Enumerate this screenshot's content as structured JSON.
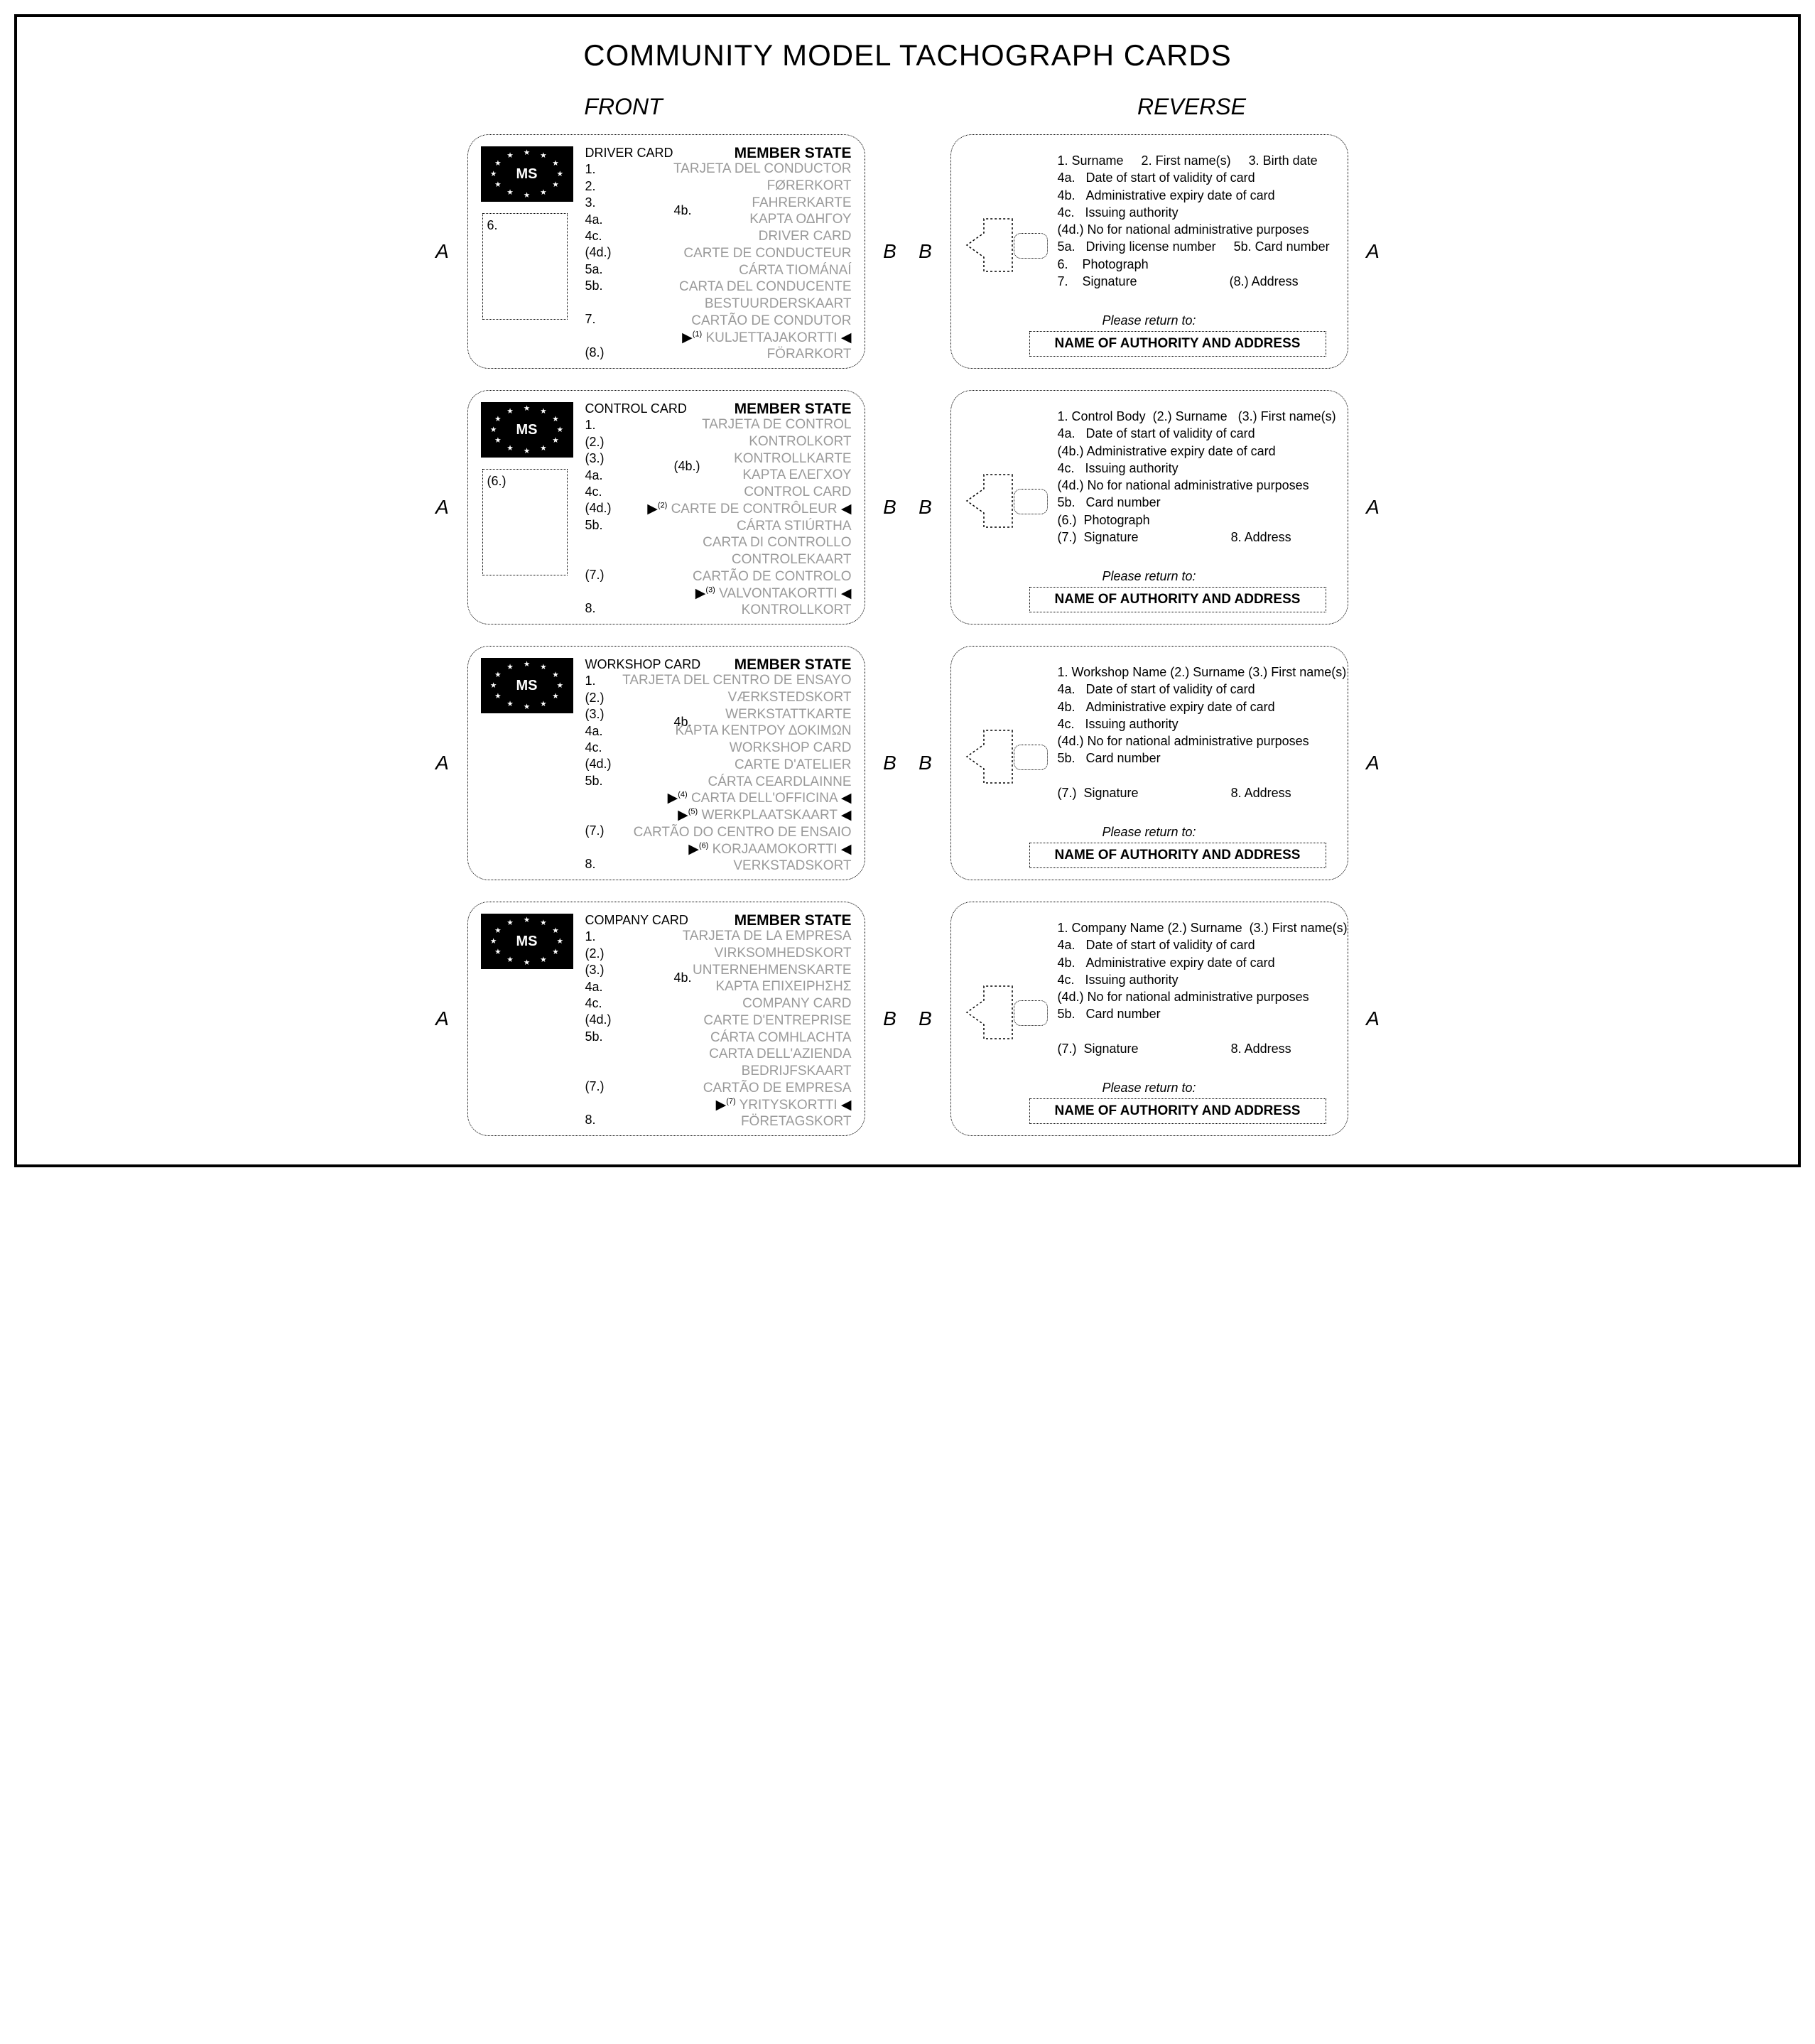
{
  "title": "COMMUNITY MODEL TACHOGRAPH CARDS",
  "frontLabel": "FRONT",
  "reverseLabel": "REVERSE",
  "sideA": "A",
  "sideB": "B",
  "flagText": "MS",
  "memberState": "MEMBER STATE",
  "pleaseReturn": "Please return to:",
  "returnBox": "NAME OF AUTHORITY AND ADDRESS",
  "colors": {
    "bgText": "#9a9a9a",
    "border": "#000000",
    "flagBg": "#000000"
  },
  "cards": [
    {
      "title": "DRIVER CARD",
      "frontFields": [
        "1.",
        "2.",
        "3.",
        "4a.",
        "4c.",
        "(4d.)",
        "5a.",
        "5b.",
        "",
        "7.",
        "",
        "(8.)"
      ],
      "mid4b": "4b.",
      "mid4bTop": 96,
      "photoLabel": "6.",
      "bgNames": [
        "TARJETA DEL CONDUCTOR",
        "FØRERKORT",
        "FAHRERKARTE",
        "ΚΑΡΤΑ ΟΔΗΓΟΥ",
        "DRIVER CARD",
        "CARTE DE CONDUCTEUR",
        "CÁRTA TIOMÁNAÍ",
        "CARTA DEL CONDUCENTE",
        "BESTUURDERSKAART",
        "CARTÃO DE CONDUTOR",
        "KULJETTAJAKORTTI",
        "FÖRARKORT"
      ],
      "arrowLines": [
        {
          "idx": 10,
          "note": "(1)"
        }
      ],
      "reverse": [
        "1. Surname     2. First name(s)     3. Birth date",
        "4a.   Date of start of validity of card",
        "4b.   Administrative expiry date of card",
        "4c.   Issuing authority",
        "(4d.) No for national administrative purposes",
        "5a.   Driving license number     5b. Card number",
        "6.    Photograph",
        "7.    Signature                          (8.) Address"
      ]
    },
    {
      "title": "CONTROL CARD",
      "frontFields": [
        "1.",
        "(2.)",
        "(3.)",
        "4a.",
        "4c.",
        "(4d.)",
        "5b.",
        "",
        "",
        "(7.)",
        "",
        "8."
      ],
      "mid4b": "(4b.)",
      "mid4bTop": 96,
      "photoLabel": "(6.)",
      "bgNames": [
        "TARJETA DE CONTROL",
        "KONTROLKORT",
        "KONTROLLKARTE",
        "ΚΑΡΤΑ ΕΛΕΓΧΟΥ",
        "CONTROL CARD",
        "CARTE DE CONTRÔLEUR",
        "CÁRTA STIÚRTHA",
        "CARTA DI CONTROLLO",
        "CONTROLEKAART",
        "CARTÃO DE CONTROLO",
        "VALVONTAKORTTI",
        "KONTROLLKORT"
      ],
      "arrowLines": [
        {
          "idx": 5,
          "note": "(2)"
        },
        {
          "idx": 10,
          "note": "(3)"
        }
      ],
      "reverse": [
        "1. Control Body  (2.) Surname   (3.) First name(s)",
        "4a.   Date of start of validity of card",
        "(4b.) Administrative expiry date of card",
        "4c.   Issuing authority",
        "(4d.) No for national administrative purposes",
        "5b.   Card number",
        "(6.)  Photograph",
        "(7.)  Signature                          8. Address"
      ]
    },
    {
      "title": "WORKSHOP CARD",
      "frontFields": [
        "1.",
        "(2.)",
        "(3.)",
        "4a.",
        "4c.",
        "(4d.)",
        "5b.",
        "",
        "",
        "(7.)",
        "",
        "8."
      ],
      "mid4b": "4b.",
      "mid4bTop": 96,
      "photoLabel": "",
      "bgNames": [
        "TARJETA DEL CENTRO DE ENSAYO",
        "VÆRKSTEDSKORT",
        "WERKSTATTKARTE",
        "ΚΑΡΤΑ ΚΕΝΤΡΟΥ ΔΟΚΙΜΩΝ",
        "WORKSHOP CARD",
        "CARTE D'ATELIER",
        "CÁRTA CEARDLAINNE",
        "CARTA DELL'OFFICINA",
        "WERKPLAATSKAART",
        "CARTÃO DO CENTRO DE ENSAIO",
        "KORJAAMOKORTTI",
        "VERKSTADSKORT"
      ],
      "arrowLines": [
        {
          "idx": 7,
          "note": "(4)"
        },
        {
          "idx": 8,
          "note": "(5)"
        },
        {
          "idx": 10,
          "note": "(6)"
        }
      ],
      "reverse": [
        "1. Workshop Name (2.) Surname (3.) First name(s)",
        "4a.   Date of start of validity of card",
        "4b.   Administrative expiry date of card",
        "4c.   Issuing authority",
        "(4d.) No for national administrative purposes",
        "5b.   Card number",
        "",
        "(7.)  Signature                          8. Address"
      ]
    },
    {
      "title": "COMPANY CARD",
      "frontFields": [
        "1.",
        "(2.)",
        "(3.)",
        "4a.",
        "4c.",
        "(4d.)",
        "5b.",
        "",
        "",
        "(7.)",
        "",
        "8."
      ],
      "mid4b": "4b.",
      "mid4bTop": 96,
      "photoLabel": "",
      "bgNames": [
        "TARJETA DE LA EMPRESA",
        "VIRKSOMHEDSKORT",
        "UNTERNEHMENSKARTE",
        "ΚΑΡΤΑ ΕΠΙΧΕΙΡΗΣΗΣ",
        "COMPANY CARD",
        "CARTE D'ENTREPRISE",
        "CÁRTA COMHLACHTA",
        "CARTA DELL'AZIENDA",
        "BEDRIJFSKAART",
        "CARTÃO DE EMPRESA",
        "YRITYSKORTTI",
        "FÖRETAGSKORT"
      ],
      "arrowLines": [
        {
          "idx": 10,
          "note": "(7)"
        }
      ],
      "reverse": [
        "1. Company Name (2.) Surname  (3.) First name(s)",
        "4a.   Date of start of validity of card",
        "4b.   Administrative expiry date of card",
        "4c.   Issuing authority",
        "(4d.) No for national administrative purposes",
        "5b.   Card number",
        "",
        "(7.)  Signature                          8. Address"
      ]
    }
  ]
}
